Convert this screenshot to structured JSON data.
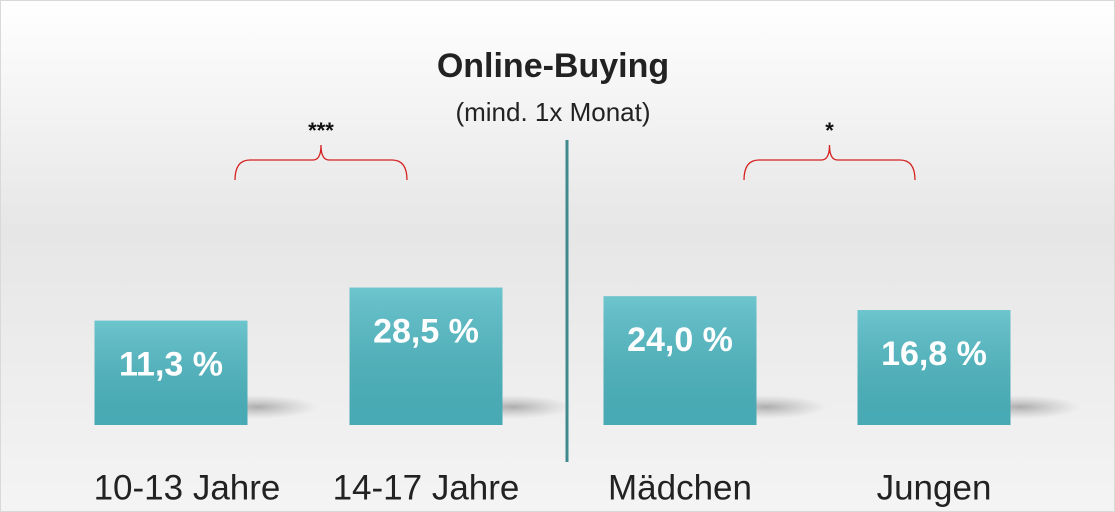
{
  "chart_data": {
    "type": "bar",
    "title": "Online-Buying",
    "subtitle": "(mind. 1x Monat)",
    "categories": [
      "10-13 Jahre",
      "14-17 Jahre",
      "Mädchen",
      "Jungen"
    ],
    "values": [
      11.3,
      28.5,
      24.0,
      16.8
    ],
    "value_labels": [
      "11,3 %",
      "28,5 %",
      "24,0 %",
      "16,8 %"
    ],
    "annotations": [
      "***",
      "*"
    ],
    "color": "#4db8c3",
    "ylim": [
      -43,
      60
    ]
  }
}
